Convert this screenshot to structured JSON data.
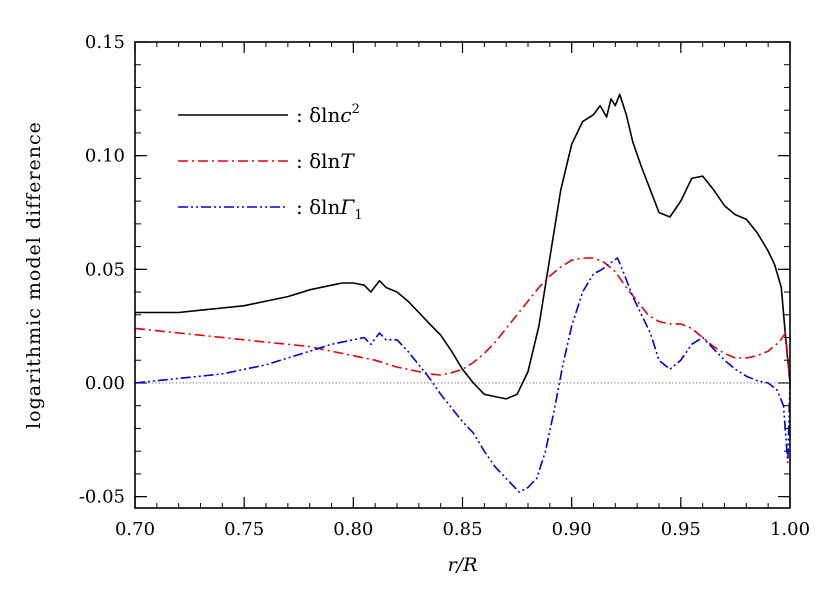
{
  "chart_data": {
    "type": "line",
    "title": "",
    "xlabel": "r/R",
    "ylabel": "logarithmic model difference",
    "xlim": [
      0.7,
      1.0
    ],
    "ylim": [
      -0.055,
      0.15
    ],
    "x_ticks": [
      0.7,
      0.75,
      0.8,
      0.85,
      0.9,
      0.95,
      1.0
    ],
    "x_tick_labels": [
      "0.70",
      "0.75",
      "0.80",
      "0.85",
      "0.90",
      "0.95",
      "1.00"
    ],
    "y_ticks": [
      -0.05,
      0.0,
      0.05,
      0.1,
      0.15
    ],
    "y_tick_labels": [
      "-0.05",
      "0.00",
      "0.05",
      "0.10",
      "0.15"
    ],
    "zero_line": true,
    "grid": false,
    "legend_position": "top-left",
    "series": [
      {
        "name": ": δlnc²",
        "label_parts": [
          ":  δ",
          "ln",
          "c",
          "2"
        ],
        "color": "#000000",
        "dash": "solid",
        "x": [
          0.7,
          0.71,
          0.72,
          0.73,
          0.74,
          0.75,
          0.76,
          0.77,
          0.78,
          0.79,
          0.795,
          0.8,
          0.805,
          0.808,
          0.812,
          0.815,
          0.82,
          0.825,
          0.83,
          0.835,
          0.84,
          0.845,
          0.85,
          0.855,
          0.86,
          0.865,
          0.87,
          0.875,
          0.88,
          0.885,
          0.89,
          0.895,
          0.9,
          0.905,
          0.91,
          0.913,
          0.916,
          0.918,
          0.92,
          0.922,
          0.925,
          0.928,
          0.932,
          0.936,
          0.94,
          0.945,
          0.95,
          0.955,
          0.96,
          0.965,
          0.97,
          0.975,
          0.98,
          0.985,
          0.99,
          0.993,
          0.996,
          0.998,
          1.0
        ],
        "y": [
          0.031,
          0.031,
          0.031,
          0.032,
          0.033,
          0.034,
          0.036,
          0.038,
          0.041,
          0.043,
          0.044,
          0.044,
          0.043,
          0.04,
          0.045,
          0.042,
          0.04,
          0.036,
          0.031,
          0.026,
          0.021,
          0.014,
          0.006,
          0.0,
          -0.005,
          -0.006,
          -0.007,
          -0.005,
          0.005,
          0.025,
          0.055,
          0.085,
          0.105,
          0.115,
          0.118,
          0.122,
          0.117,
          0.125,
          0.122,
          0.127,
          0.118,
          0.106,
          0.095,
          0.085,
          0.075,
          0.073,
          0.08,
          0.09,
          0.091,
          0.085,
          0.078,
          0.074,
          0.072,
          0.066,
          0.058,
          0.052,
          0.042,
          0.02,
          0.0
        ]
      },
      {
        "name": ": δlnT",
        "label_parts": [
          ":  δ",
          "ln",
          "T",
          ""
        ],
        "color": "#e8000b",
        "dash": "dash-dot",
        "x": [
          0.7,
          0.71,
          0.72,
          0.73,
          0.74,
          0.75,
          0.76,
          0.77,
          0.78,
          0.79,
          0.8,
          0.81,
          0.82,
          0.83,
          0.835,
          0.84,
          0.845,
          0.85,
          0.855,
          0.86,
          0.865,
          0.87,
          0.875,
          0.88,
          0.885,
          0.89,
          0.895,
          0.9,
          0.905,
          0.91,
          0.915,
          0.92,
          0.925,
          0.93,
          0.935,
          0.94,
          0.945,
          0.95,
          0.955,
          0.96,
          0.965,
          0.97,
          0.975,
          0.98,
          0.985,
          0.99,
          0.995,
          0.998,
          1.0
        ],
        "y": [
          0.024,
          0.023,
          0.022,
          0.021,
          0.02,
          0.019,
          0.018,
          0.017,
          0.016,
          0.014,
          0.012,
          0.01,
          0.007,
          0.005,
          0.004,
          0.0035,
          0.0045,
          0.006,
          0.009,
          0.013,
          0.018,
          0.024,
          0.03,
          0.036,
          0.042,
          0.047,
          0.051,
          0.054,
          0.055,
          0.055,
          0.053,
          0.049,
          0.042,
          0.036,
          0.03,
          0.027,
          0.026,
          0.026,
          0.024,
          0.02,
          0.016,
          0.013,
          0.011,
          0.011,
          0.012,
          0.014,
          0.018,
          0.022,
          0.0
        ]
      },
      {
        "name": ": δlnΓ₁",
        "label_parts": [
          ":  δ",
          "ln",
          "Γ",
          "1"
        ],
        "color": "#0000e0",
        "dash": "dash-dot-dot",
        "x": [
          0.7,
          0.71,
          0.72,
          0.73,
          0.74,
          0.75,
          0.76,
          0.77,
          0.78,
          0.79,
          0.8,
          0.805,
          0.808,
          0.812,
          0.815,
          0.82,
          0.825,
          0.83,
          0.835,
          0.84,
          0.845,
          0.85,
          0.855,
          0.86,
          0.865,
          0.87,
          0.873,
          0.876,
          0.88,
          0.884,
          0.888,
          0.892,
          0.896,
          0.9,
          0.905,
          0.91,
          0.914,
          0.918,
          0.921,
          0.924,
          0.928,
          0.932,
          0.936,
          0.94,
          0.945,
          0.95,
          0.955,
          0.96,
          0.965,
          0.97,
          0.975,
          0.98,
          0.985,
          0.99,
          0.994,
          0.997,
          0.999,
          1.0
        ],
        "y": [
          0.0,
          0.001,
          0.002,
          0.003,
          0.004,
          0.006,
          0.008,
          0.011,
          0.014,
          0.017,
          0.019,
          0.02,
          0.017,
          0.022,
          0.019,
          0.019,
          0.014,
          0.008,
          0.002,
          -0.005,
          -0.011,
          -0.017,
          -0.022,
          -0.03,
          -0.037,
          -0.042,
          -0.045,
          -0.048,
          -0.046,
          -0.042,
          -0.03,
          -0.012,
          0.008,
          0.025,
          0.04,
          0.048,
          0.05,
          0.053,
          0.055,
          0.048,
          0.038,
          0.03,
          0.022,
          0.01,
          0.006,
          0.01,
          0.017,
          0.02,
          0.015,
          0.01,
          0.006,
          0.003,
          0.001,
          0.0,
          -0.003,
          -0.01,
          -0.035,
          0.0
        ]
      }
    ]
  }
}
